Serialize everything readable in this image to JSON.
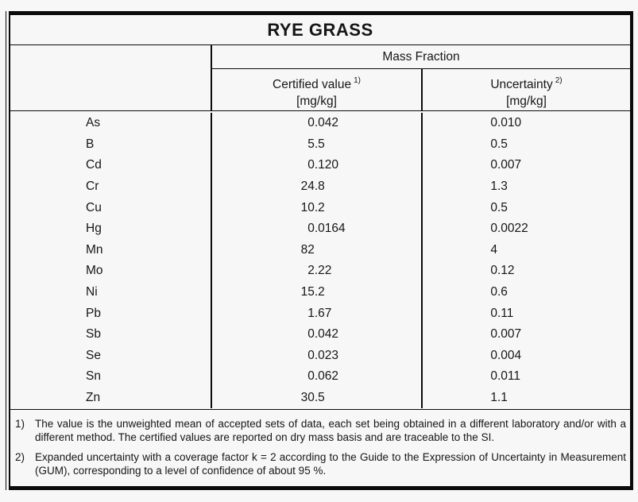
{
  "title": "RYE GRASS",
  "table": {
    "group_header": "Mass Fraction",
    "columns": [
      {
        "label": "Certified value",
        "footnote_ref": "1)",
        "unit": "[mg/kg]"
      },
      {
        "label": "Uncertainty",
        "footnote_ref": "2)",
        "unit": "[mg/kg]"
      }
    ],
    "rows": [
      {
        "element": "As",
        "certified": "0.042",
        "uncertainty": "0.010"
      },
      {
        "element": "B",
        "certified": "5.5",
        "uncertainty": "0.5"
      },
      {
        "element": "Cd",
        "certified": "0.120",
        "uncertainty": "0.007"
      },
      {
        "element": "Cr",
        "certified": "24.8",
        "uncertainty": "1.3"
      },
      {
        "element": "Cu",
        "certified": "10.2",
        "uncertainty": "0.5"
      },
      {
        "element": "Hg",
        "certified": "0.0164",
        "uncertainty": "0.0022"
      },
      {
        "element": "Mn",
        "certified": "82",
        "uncertainty": "4"
      },
      {
        "element": "Mo",
        "certified": "2.22",
        "uncertainty": "0.12"
      },
      {
        "element": "Ni",
        "certified": "15.2",
        "uncertainty": "0.6"
      },
      {
        "element": "Pb",
        "certified": "1.67",
        "uncertainty": "0.11"
      },
      {
        "element": "Sb",
        "certified": "0.042",
        "uncertainty": "0.007"
      },
      {
        "element": "Se",
        "certified": "0.023",
        "uncertainty": "0.004"
      },
      {
        "element": "Sn",
        "certified": "0.062",
        "uncertainty": "0.011"
      },
      {
        "element": "Zn",
        "certified": "30.5",
        "uncertainty": "1.1"
      }
    ],
    "footnotes": [
      {
        "marker": "1)",
        "text": "The value is the unweighted mean of accepted sets of data, each set being obtained in a different laboratory and/or with a different method. The certified values are reported on dry mass basis and are traceable to the SI."
      },
      {
        "marker": "2)",
        "text": "Expanded uncertainty with a coverage factor k = 2 according to the Guide to the Expression of Uncertainty in Measurement (GUM), corresponding to a level of confidence of about 95 %."
      }
    ]
  },
  "colors": {
    "page_bg": "#f7f7f7",
    "line": "#0b0b0b",
    "text": "#161616"
  }
}
